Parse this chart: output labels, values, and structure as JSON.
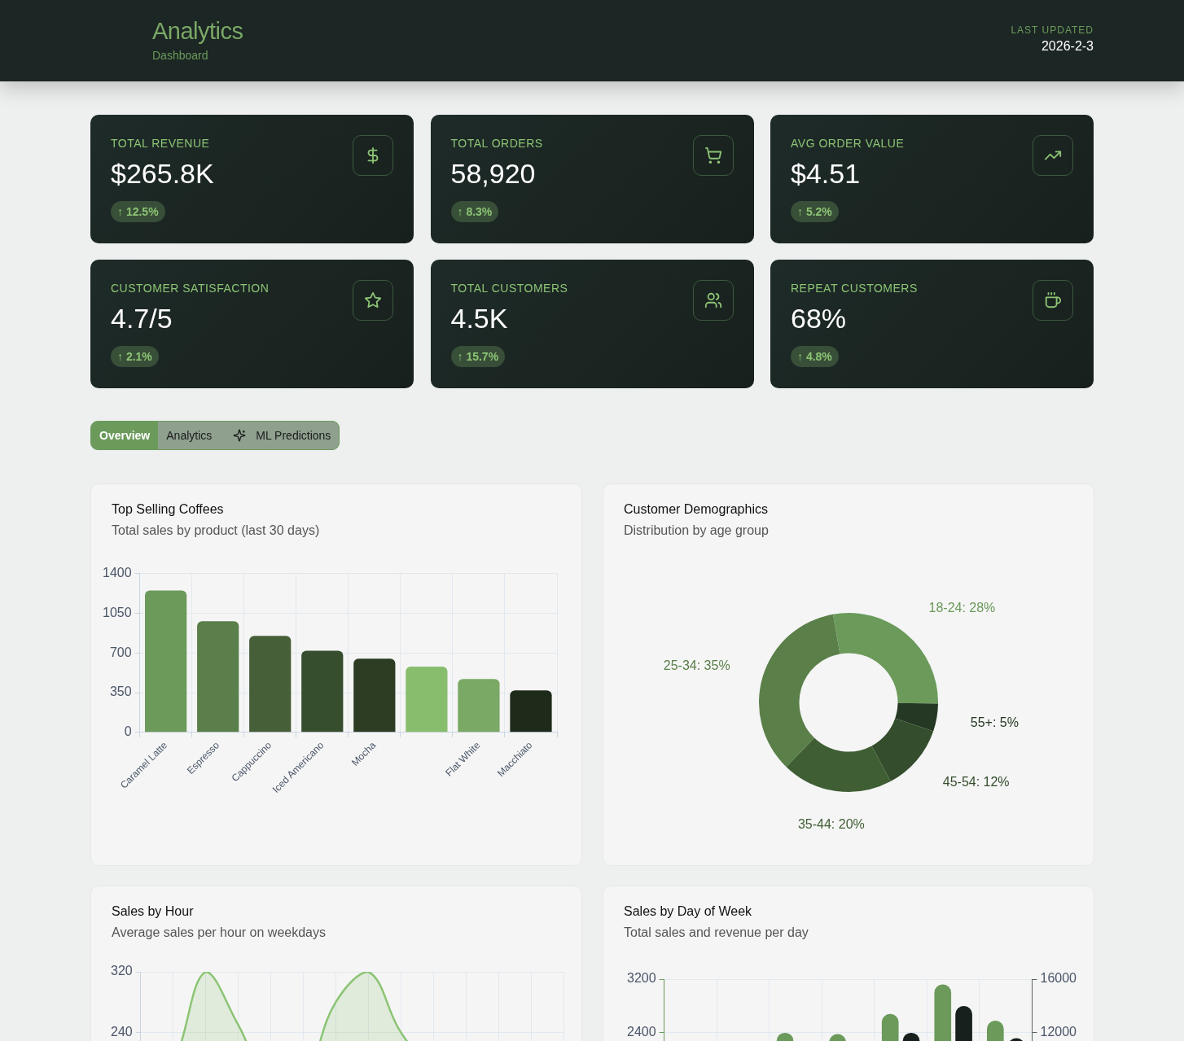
{
  "chart_data": [
    {
      "type": "other",
      "title": "Analytics",
      "subtitle": "Dashboard",
      "annotations": [
        "LAST UPDATED",
        "2026-2-3",
        "TOTAL REVENUE",
        "$265.8K",
        "↑ 12.5%",
        "TOTAL ORDERS",
        "58,920",
        "↑ 8.3%",
        "AVG ORDER VALUE",
        "$4.51",
        "↑ 5.2%",
        "CUSTOMER SATISFACTION",
        "4.7/5",
        "↑ 2.1%",
        "TOTAL CUSTOMERS",
        "4.5K",
        "↑ 15.7%",
        "REPEAT CUSTOMERS",
        "68%",
        "↑ 4.8%",
        "Overview",
        "Analytics",
        "ML Predictions"
      ]
    },
    {
      "type": "bar",
      "title": "Top Selling Coffees",
      "subtitle": "Total sales by product (last 30 days)",
      "categories": [
        "Caramel Latte",
        "Espresso",
        "Cappuccino",
        "Iced Americano",
        "Mocha",
        null,
        "Flat White",
        "Macchiato"
      ],
      "values": [
        1250,
        980,
        850,
        720,
        650,
        580,
        470,
        370
      ],
      "colors": [
        "#6b9a5b",
        "#5b7f4a",
        "#465f38",
        "#364e2e",
        "#2c3d24",
        "#88bd6e",
        "#7aa865",
        "#1e2a1a"
      ],
      "ylim": [
        0,
        1400
      ],
      "yticks": [
        0,
        350,
        700,
        1050,
        1400
      ],
      "grid": true
    },
    {
      "type": "donut",
      "title": "Customer Demographics",
      "subtitle": "Distribution by age group",
      "categories": [
        "18-24",
        "55+",
        "45-54",
        "35-44",
        "25-34"
      ],
      "values": [
        28,
        5,
        12,
        20,
        35
      ],
      "colors": [
        "#6b9a5b",
        "#253823",
        "#344d2c",
        "#3f5e34",
        "#5a7f48"
      ],
      "value_labels": [
        "28%",
        "5%",
        "12%",
        "20%",
        "35%"
      ]
    },
    {
      "type": "area",
      "title": "Sales by Hour",
      "subtitle": "Average sales per hour on weekdays",
      "categories": [
        null,
        null,
        null,
        null,
        null,
        null,
        null,
        null,
        null,
        null,
        null,
        null,
        null,
        null
      ],
      "series": [
        {
          "color": "#8cc474",
          "values": [
            150,
            200,
            320,
            250,
            170,
            180,
            280,
            320,
            240,
            190,
            160,
            170,
            150,
            120
          ]
        }
      ],
      "ylim": [
        0,
        320
      ],
      "yticks": [
        240,
        320
      ],
      "grid": true,
      "marker": "none"
    },
    {
      "type": "bar",
      "title": "Sales by Day of Week",
      "subtitle": "Total sales and revenue per day",
      "categories": [
        null,
        null,
        null,
        null,
        null,
        null,
        null
      ],
      "series": [
        {
          "color": "#6b9a5b",
          "values": [
            null,
            null,
            2400,
            2380,
            2680,
            3120,
            2580
          ]
        },
        {
          "color": "#18201d",
          "axis": "y2",
          "values": [
            null,
            null,
            null,
            null,
            12000,
            14000,
            11600
          ]
        }
      ],
      "ylim": [
        0,
        3200
      ],
      "yticks": [
        2400,
        3200
      ],
      "y2lim": [
        0,
        16000
      ],
      "y2ticks": [
        12000,
        16000
      ],
      "grid": true
    }
  ]
}
